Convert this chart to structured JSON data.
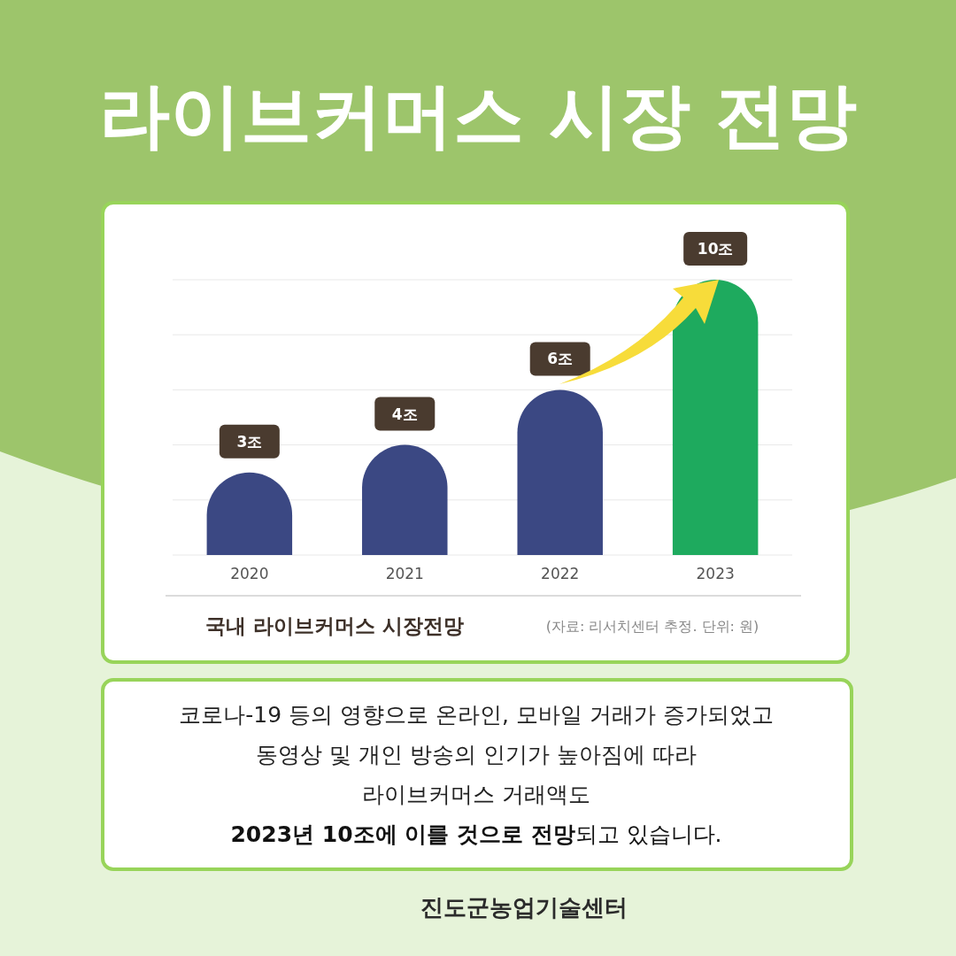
{
  "chart_data": {
    "type": "bar",
    "title": "라이브커머스 시장 전망",
    "subtitle": "국내 라이브커머스 시장전망",
    "categories": [
      "2020",
      "2021",
      "2022",
      "2023"
    ],
    "values": [
      3,
      4,
      6,
      10
    ],
    "colors": [
      "#3b4883",
      "#3b4883",
      "#3b4883",
      "#1eaa5e"
    ],
    "value_labels": [
      "3조",
      "4조",
      "6조",
      "10조"
    ],
    "ylim": [
      0,
      10
    ],
    "yticks": [
      {
        "value": 0,
        "label": null
      },
      {
        "value": 2,
        "label": null
      },
      {
        "value": 4,
        "label": null
      },
      {
        "value": 6,
        "label": null
      },
      {
        "value": 8,
        "label": null
      },
      {
        "value": 10,
        "label": null
      }
    ],
    "grid": "y",
    "tick_labels": "x",
    "annotations": [
      "(자료: 리서치센터 추정. 단위: 원)",
      "코로나-19 등의 영향으로 온라인, 모바일 거래가 증가되었고",
      "동영상 및 개인 방송의 인기가 높아짐에 따라",
      "라이브커머스 거래액도",
      "2023년 10조에 이를 것으로 전망",
      "되고 있습니다.",
      "진도군농업기술센터"
    ]
  }
}
